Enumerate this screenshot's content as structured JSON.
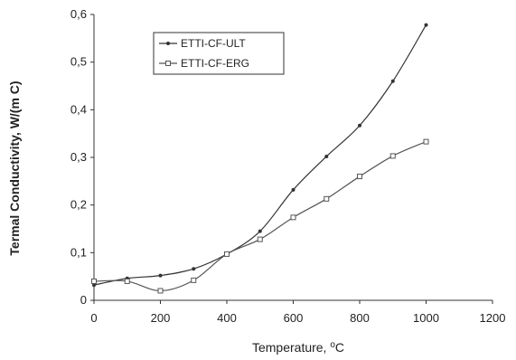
{
  "chart_data": {
    "type": "line",
    "xlabel": "Temperature, °C",
    "ylabel": "Termal Conductivity, W/(m C)",
    "xlim": [
      0,
      1200
    ],
    "ylim": [
      0,
      0.6
    ],
    "x_ticks": [
      "0",
      "200",
      "400",
      "600",
      "800",
      "1000",
      "1200"
    ],
    "y_ticks": [
      "0",
      "0,1",
      "0,2",
      "0,3",
      "0,4",
      "0,5",
      "0,6"
    ],
    "grid": false,
    "legend_position": "top-left",
    "series": [
      {
        "name": "ETTI-CF-ULT",
        "marker": "filled-dot",
        "color": "#333333",
        "x": [
          0,
          100,
          200,
          300,
          400,
          500,
          600,
          700,
          800,
          900,
          1000
        ],
        "y": [
          0.032,
          0.046,
          0.052,
          0.066,
          0.097,
          0.145,
          0.232,
          0.302,
          0.367,
          0.46,
          0.578
        ]
      },
      {
        "name": "ETTI-CF-ERG",
        "marker": "open-square",
        "color": "#555555",
        "x": [
          0,
          100,
          200,
          300,
          400,
          500,
          600,
          700,
          800,
          900,
          1000
        ],
        "y": [
          0.04,
          0.04,
          0.02,
          0.042,
          0.097,
          0.128,
          0.174,
          0.213,
          0.26,
          0.303,
          0.333
        ]
      }
    ]
  }
}
